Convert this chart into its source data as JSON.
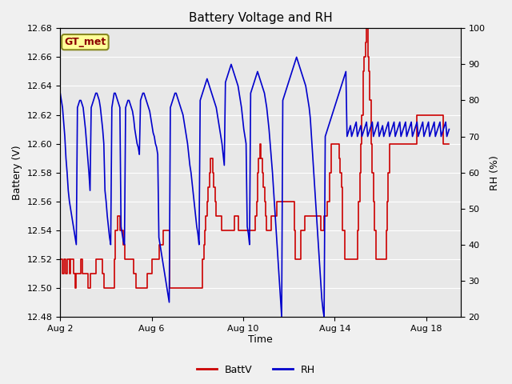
{
  "title": "Battery Voltage and RH",
  "xlabel": "Time",
  "ylabel_left": "Battery (V)",
  "ylabel_right": "RH (%)",
  "ylim_left": [
    12.48,
    12.68
  ],
  "ylim_right": [
    20,
    100
  ],
  "yticks_left": [
    12.48,
    12.5,
    12.52,
    12.54,
    12.56,
    12.58,
    12.6,
    12.62,
    12.64,
    12.66,
    12.68
  ],
  "yticks_right": [
    20,
    30,
    40,
    50,
    60,
    70,
    80,
    90,
    100
  ],
  "xtick_labels": [
    "Aug 2",
    "Aug 6",
    "Aug 10",
    "Aug 14",
    "Aug 18"
  ],
  "xtick_positions": [
    2,
    6,
    10,
    14,
    18
  ],
  "color_batt": "#cc0000",
  "color_rh": "#0000cc",
  "label_batt": "BattV",
  "label_rh": "RH",
  "station_label": "GT_met",
  "outer_bg": "#f0f0f0",
  "plot_bg_color": "#e0e0e0",
  "linewidth": 1.2,
  "batt_data": [
    12.52,
    12.52,
    12.51,
    12.52,
    12.52,
    12.51,
    12.52,
    12.52,
    12.51,
    12.52,
    12.52,
    12.52,
    12.51,
    12.5,
    12.51,
    12.51,
    12.51,
    12.51,
    12.52,
    12.51,
    12.51,
    12.51,
    12.51,
    12.51,
    12.5,
    12.5,
    12.51,
    12.51,
    12.51,
    12.51,
    12.51,
    12.52,
    12.52,
    12.52,
    12.52,
    12.52,
    12.52,
    12.51,
    12.5,
    12.5,
    12.5,
    12.5,
    12.5,
    12.5,
    12.5,
    12.5,
    12.5,
    12.52,
    12.54,
    12.54,
    12.55,
    12.55,
    12.54,
    12.54,
    12.54,
    12.53,
    12.52,
    12.52,
    12.52,
    12.52,
    12.52,
    12.52,
    12.52,
    12.52,
    12.51,
    12.51,
    12.5,
    12.5,
    12.5,
    12.5,
    12.5,
    12.5,
    12.5,
    12.5,
    12.5,
    12.5,
    12.51,
    12.51,
    12.51,
    12.51,
    12.52,
    12.52,
    12.52,
    12.52,
    12.52,
    12.52,
    12.53,
    12.53,
    12.53,
    12.53,
    12.54,
    12.54,
    12.54,
    12.54,
    12.54,
    12.5,
    12.5,
    12.5,
    12.5,
    12.5,
    12.5,
    12.5,
    12.5,
    12.5,
    12.5,
    12.5,
    12.5,
    12.5,
    12.5,
    12.5,
    12.5,
    12.5,
    12.5,
    12.5,
    12.5,
    12.5,
    12.5,
    12.5,
    12.5,
    12.5,
    12.5,
    12.5,
    12.5,
    12.5,
    12.52,
    12.53,
    12.54,
    12.55,
    12.56,
    12.57,
    12.58,
    12.59,
    12.59,
    12.58,
    12.57,
    12.56,
    12.55,
    12.55,
    12.55,
    12.55,
    12.55,
    12.54,
    12.54,
    12.54,
    12.54,
    12.54,
    12.54,
    12.54,
    12.54,
    12.54,
    12.54,
    12.54,
    12.55,
    12.55,
    12.55,
    12.54,
    12.54,
    12.54,
    12.54,
    12.54,
    12.54,
    12.54,
    12.54,
    12.54,
    12.54,
    12.54,
    12.54,
    12.54,
    12.54,
    12.54,
    12.55,
    12.56,
    12.58,
    12.59,
    12.6,
    12.59,
    12.58,
    12.57,
    12.56,
    12.55,
    12.54,
    12.54,
    12.54,
    12.54,
    12.55,
    12.55,
    12.55,
    12.55,
    12.55,
    12.56,
    12.56,
    12.56,
    12.56,
    12.56,
    12.56,
    12.56,
    12.56,
    12.56,
    12.56,
    12.56,
    12.56,
    12.56,
    12.56,
    12.56,
    12.54,
    12.52,
    12.52,
    12.52,
    12.52,
    12.52,
    12.54,
    12.54,
    12.54,
    12.55,
    12.55,
    12.55,
    12.55,
    12.55,
    12.55,
    12.55,
    12.55,
    12.55,
    12.55,
    12.55,
    12.55,
    12.55,
    12.55,
    12.54,
    12.54,
    12.54,
    12.55,
    12.55,
    12.55,
    12.56,
    12.56,
    12.58,
    12.6,
    12.6,
    12.6,
    12.6,
    12.6,
    12.6,
    12.6,
    12.59,
    12.58,
    12.57,
    12.54,
    12.54,
    12.52,
    12.52,
    12.52,
    12.52,
    12.52,
    12.52,
    12.52,
    12.52,
    12.52,
    12.52,
    12.52,
    12.54,
    12.56,
    12.58,
    12.6,
    12.62,
    12.65,
    12.66,
    12.67,
    12.68,
    12.66,
    12.65,
    12.63,
    12.6,
    12.58,
    12.56,
    12.54,
    12.52,
    12.52,
    12.52,
    12.52,
    12.52,
    12.52,
    12.52,
    12.52,
    12.52,
    12.54,
    12.56,
    12.58,
    12.6,
    12.6,
    12.6,
    12.6,
    12.6,
    12.6,
    12.6,
    12.6,
    12.6,
    12.6,
    12.6,
    12.6,
    12.6,
    12.6,
    12.6,
    12.6,
    12.6,
    12.6,
    12.6,
    12.6,
    12.6,
    12.6,
    12.6,
    12.6,
    12.62,
    12.62,
    12.62,
    12.62,
    12.62,
    12.62,
    12.62,
    12.62,
    12.62,
    12.62,
    12.62,
    12.62,
    12.62,
    12.62,
    12.62,
    12.62,
    12.62,
    12.62,
    12.62,
    12.62,
    12.62,
    12.62,
    12.62,
    12.6,
    12.6,
    12.6,
    12.6,
    12.6,
    12.6
  ],
  "rh_data": [
    82,
    80,
    78,
    74,
    70,
    64,
    60,
    55,
    52,
    50,
    48,
    46,
    44,
    42,
    40,
    78,
    79,
    80,
    80,
    79,
    78,
    75,
    72,
    68,
    64,
    60,
    55,
    78,
    79,
    80,
    81,
    82,
    82,
    81,
    80,
    78,
    75,
    72,
    68,
    55,
    52,
    48,
    45,
    42,
    40,
    78,
    80,
    82,
    82,
    81,
    80,
    79,
    78,
    45,
    43,
    41,
    40,
    78,
    79,
    80,
    80,
    79,
    78,
    77,
    75,
    72,
    70,
    68,
    67,
    65,
    80,
    81,
    82,
    82,
    81,
    80,
    79,
    78,
    77,
    75,
    73,
    71,
    70,
    68,
    67,
    65,
    42,
    40,
    38,
    36,
    34,
    32,
    30,
    28,
    26,
    24,
    78,
    79,
    80,
    81,
    82,
    82,
    81,
    80,
    79,
    78,
    77,
    76,
    74,
    72,
    70,
    68,
    65,
    62,
    60,
    57,
    54,
    51,
    48,
    45,
    43,
    40,
    80,
    81,
    82,
    83,
    84,
    85,
    86,
    85,
    84,
    83,
    82,
    81,
    80,
    79,
    78,
    76,
    74,
    72,
    70,
    68,
    65,
    62,
    85,
    86,
    87,
    88,
    89,
    90,
    89,
    88,
    87,
    86,
    85,
    84,
    82,
    80,
    78,
    75,
    72,
    70,
    68,
    45,
    43,
    40,
    82,
    83,
    84,
    85,
    86,
    87,
    88,
    87,
    86,
    85,
    84,
    83,
    82,
    80,
    78,
    75,
    72,
    68,
    64,
    60,
    55,
    50,
    45,
    40,
    35,
    30,
    25,
    20,
    80,
    81,
    82,
    83,
    84,
    85,
    86,
    87,
    88,
    89,
    90,
    91,
    92,
    91,
    90,
    89,
    88,
    87,
    86,
    85,
    84,
    82,
    80,
    78,
    75,
    70,
    65,
    60,
    55,
    50,
    45,
    40,
    35,
    30,
    25,
    22,
    20,
    70,
    71,
    72,
    73,
    74,
    75,
    76,
    77,
    78,
    79,
    80,
    81,
    82,
    83,
    84,
    85,
    86,
    87,
    88,
    70,
    71,
    72,
    73,
    70,
    71,
    72,
    73,
    74,
    70,
    71,
    72,
    73,
    70,
    71,
    72,
    73,
    74,
    70,
    71,
    72,
    73,
    74,
    70,
    71,
    72,
    73,
    74,
    70,
    71,
    72,
    73,
    70,
    71,
    72,
    73,
    74,
    70,
    71,
    72,
    73,
    74,
    70,
    71,
    72,
    73,
    74,
    70,
    71,
    72,
    73,
    74,
    70,
    71,
    72,
    73,
    74,
    70,
    71,
    72,
    73,
    74,
    70,
    71,
    72,
    73,
    74,
    70,
    71,
    72,
    73,
    74,
    70,
    71,
    72,
    73,
    74,
    70,
    71,
    72,
    73,
    74,
    70,
    71,
    72,
    73,
    74,
    70,
    71,
    72
  ]
}
